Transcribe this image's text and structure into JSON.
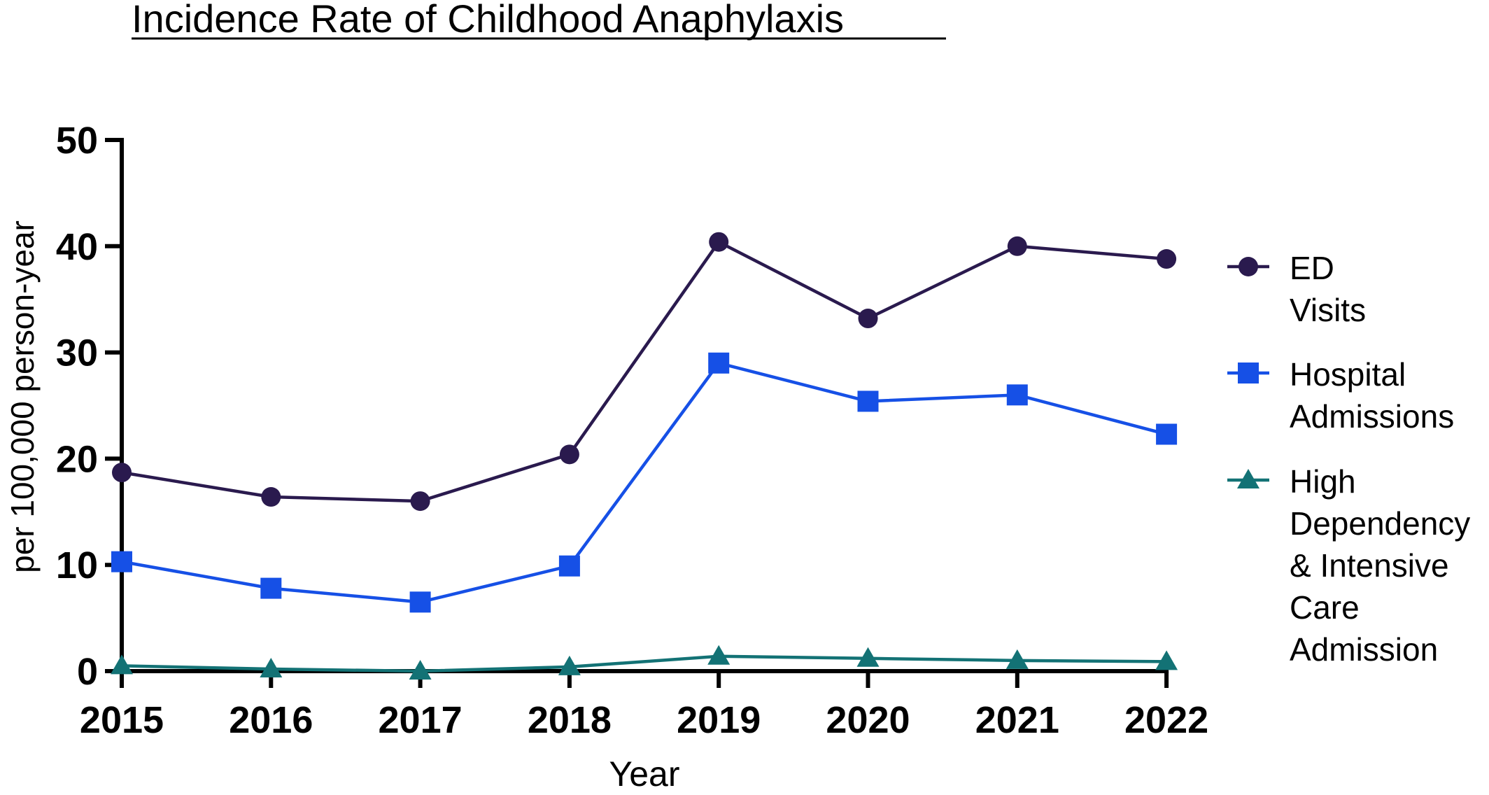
{
  "chart_data": {
    "type": "line",
    "title": "Incidence Rate of Childhood Anaphylaxis",
    "xlabel": "Year",
    "ylabel": "per 100,000 person-year",
    "x": [
      "2015",
      "2016",
      "2017",
      "2018",
      "2019",
      "2020",
      "2021",
      "2022"
    ],
    "ylim": [
      0,
      50
    ],
    "yticks": [
      "0",
      "10",
      "20",
      "30",
      "40",
      "50"
    ],
    "grid": false,
    "legend_position": "right",
    "series": [
      {
        "name_lines": [
          "ED",
          "Visits"
        ],
        "marker": "circle",
        "color": "#2a1a4e",
        "values": [
          18.7,
          16.4,
          16.0,
          20.4,
          40.4,
          33.2,
          40.0,
          38.8
        ]
      },
      {
        "name_lines": [
          "Hospital",
          "Admissions"
        ],
        "marker": "square",
        "color": "#1650e6",
        "values": [
          10.3,
          7.8,
          6.5,
          9.9,
          29.0,
          25.4,
          26.0,
          22.3
        ]
      },
      {
        "name_lines": [
          "High",
          "Dependency",
          "& Intensive",
          "Care",
          "Admission"
        ],
        "marker": "triangle",
        "color": "#137275",
        "values": [
          0.5,
          0.2,
          0.0,
          0.4,
          1.4,
          1.2,
          1.0,
          0.9
        ]
      }
    ]
  }
}
